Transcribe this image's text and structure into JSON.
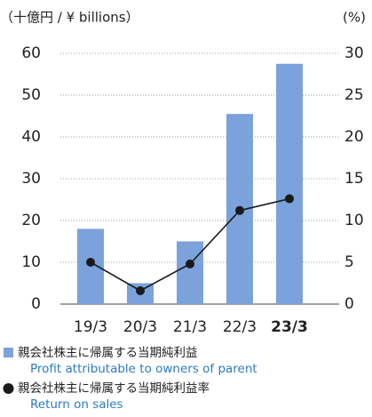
{
  "chart_data": {
    "type": "bar_line",
    "y_label": "（十億円 / ¥ billions）",
    "y2_label": "(%)",
    "categories": [
      "19/3",
      "20/3",
      "21/3",
      "22/3",
      "23/3"
    ],
    "bold_categories": [
      false,
      false,
      false,
      false,
      true
    ],
    "series": [
      {
        "name": "親会社株主に帰属する当期純利益",
        "name_en": "Profit attributable to owners of parent",
        "type": "bar",
        "color": "#7ba2db",
        "values": [
          18,
          5,
          15,
          45.5,
          57.5
        ]
      },
      {
        "name": "親会社株主に帰属する当期純利益率",
        "name_en": "Return on sales",
        "type": "line",
        "axis": "y2",
        "color": "#1a1a1a",
        "values": [
          5.0,
          1.6,
          4.8,
          11.2,
          12.6
        ]
      }
    ],
    "ylim": [
      0,
      60
    ],
    "yticks": [
      0,
      10,
      20,
      30,
      40,
      50,
      60
    ],
    "y2lim": [
      0,
      30
    ],
    "y2ticks": [
      0,
      5,
      10,
      15,
      20,
      25,
      30
    ],
    "grid": true
  }
}
